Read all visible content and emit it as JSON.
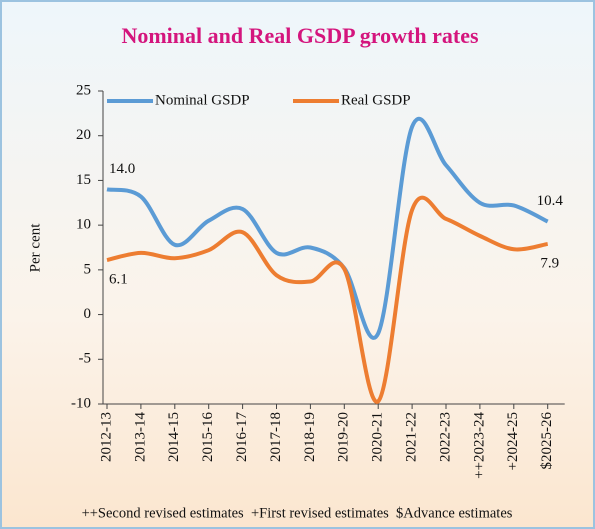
{
  "chart_data": {
    "type": "line",
    "title": "Nominal and Real GSDP growth rates",
    "y_label": "Per cent",
    "footnote": "++Second revised estimates  +First revised estimates  $Advance estimates",
    "categories": [
      "2012-13",
      "2013-14",
      "2014-15",
      "2015-16",
      "2016-17",
      "2017-18",
      "2018-19",
      "2019-20",
      "2020-21",
      "2021-22",
      "2022-23",
      "++2023-24",
      "+2024-25",
      "$2025-26"
    ],
    "series": [
      {
        "name": "Nominal GSDP",
        "color": "#5b9bd5",
        "values": [
          14.0,
          13.2,
          7.8,
          10.5,
          11.8,
          6.9,
          7.5,
          5.2,
          -2.1,
          21.0,
          16.7,
          12.5,
          12.2,
          10.4
        ],
        "value_labels": [
          "14.0",
          null,
          null,
          null,
          null,
          null,
          null,
          null,
          null,
          null,
          null,
          null,
          null,
          "10.4"
        ]
      },
      {
        "name": "Real GSDP",
        "color": "#ed7d31",
        "values": [
          6.1,
          6.9,
          6.3,
          7.2,
          9.2,
          4.4,
          3.7,
          5.1,
          -9.7,
          11.7,
          10.7,
          8.8,
          7.3,
          7.9
        ],
        "value_labels": [
          "6.1",
          null,
          null,
          null,
          null,
          null,
          null,
          null,
          null,
          null,
          null,
          null,
          null,
          "7.9"
        ]
      }
    ],
    "ylim": [
      -10,
      25
    ],
    "yticks": [
      -10,
      -5,
      0,
      5,
      10,
      15,
      20,
      25
    ],
    "grid": false
  }
}
